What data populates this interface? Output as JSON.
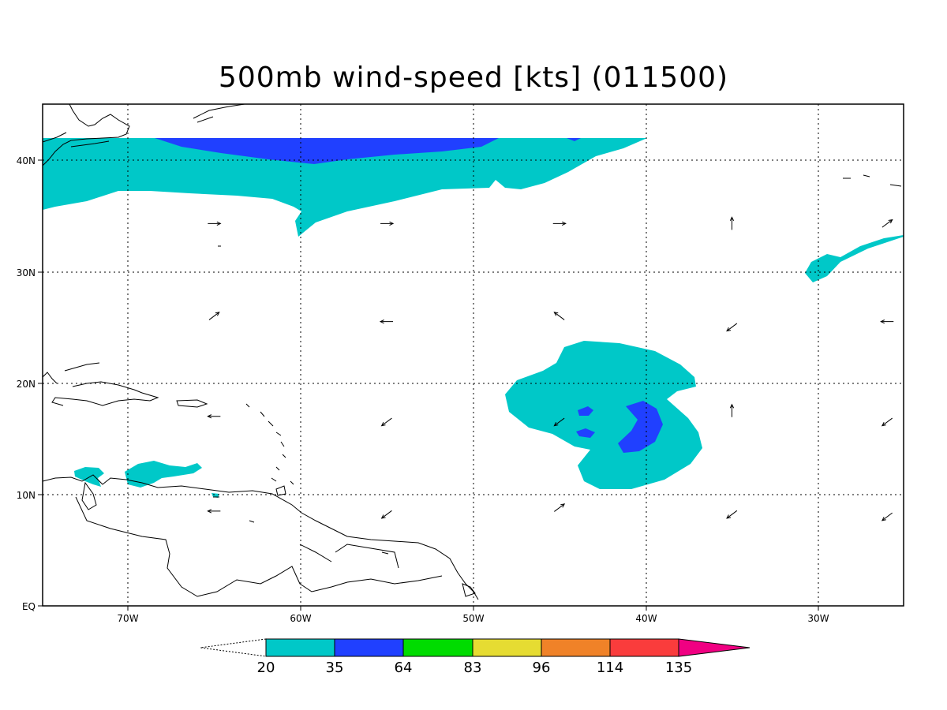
{
  "title": "500mb wind-speed [kts] (011500)",
  "map": {
    "lon_labels": [
      "70W",
      "60W",
      "50W",
      "40W",
      "30W"
    ],
    "lat_labels": [
      "40N",
      "30N",
      "20N",
      "10N",
      "EQ"
    ],
    "grid": "dotted"
  },
  "colorbar": {
    "breaks": [
      "20",
      "35",
      "64",
      "83",
      "96",
      "114",
      "135"
    ],
    "colors": [
      "#00c8c8",
      "#2040ff",
      "#00dc00",
      "#e6dc32",
      "#f08228",
      "#fa3c3c",
      "#f00082"
    ]
  },
  "shading": {
    "shade_20_35": "#00c8c8",
    "shade_35_64": "#2040ff"
  },
  "wind_vectors": [
    {
      "lon": -65,
      "lat": 34.3,
      "dir": "E"
    },
    {
      "lon": -55,
      "lat": 34.3,
      "dir": "E"
    },
    {
      "lon": -45,
      "lat": 34.3,
      "dir": "E"
    },
    {
      "lon": -35,
      "lat": 34.3,
      "dir": "N"
    },
    {
      "lon": -26,
      "lat": 34.3,
      "dir": "NE"
    },
    {
      "lon": -65,
      "lat": 26.0,
      "dir": "NE"
    },
    {
      "lon": -55,
      "lat": 25.5,
      "dir": "W"
    },
    {
      "lon": -45,
      "lat": 26.0,
      "dir": "NW"
    },
    {
      "lon": -35,
      "lat": 25.0,
      "dir": "SW"
    },
    {
      "lon": -26,
      "lat": 25.5,
      "dir": "W"
    },
    {
      "lon": -65,
      "lat": 17.0,
      "dir": "W"
    },
    {
      "lon": -55,
      "lat": 16.5,
      "dir": "SW"
    },
    {
      "lon": -45,
      "lat": 16.5,
      "dir": "SW"
    },
    {
      "lon": -35,
      "lat": 17.5,
      "dir": "N"
    },
    {
      "lon": -26,
      "lat": 16.5,
      "dir": "SW"
    },
    {
      "lon": -65,
      "lat": 8.5,
      "dir": "W"
    },
    {
      "lon": -55,
      "lat": 8.2,
      "dir": "SW"
    },
    {
      "lon": -45,
      "lat": 8.8,
      "dir": "NE"
    },
    {
      "lon": -35,
      "lat": 8.2,
      "dir": "SW"
    },
    {
      "lon": -26,
      "lat": 8.0,
      "dir": "SW"
    }
  ]
}
